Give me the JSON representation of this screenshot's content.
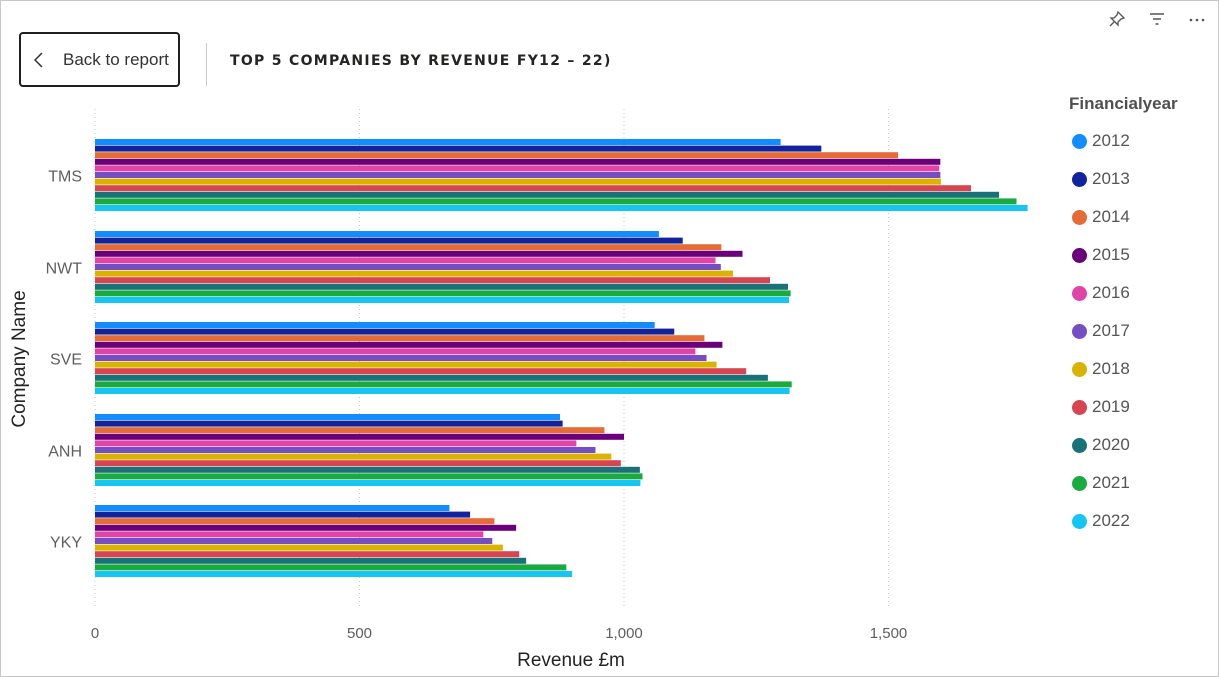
{
  "header": {
    "back_label": "Back to report",
    "title": "TOP 5 COMPANIES BY REVENUE FY12 – 22)"
  },
  "toolbar": {
    "icons": [
      "pin-icon",
      "filter-icon",
      "more-options-icon"
    ]
  },
  "legend": {
    "title": "Financialyear"
  },
  "colors": {
    "2012": "#118DFF",
    "2013": "#12239E",
    "2014": "#E66C37",
    "2015": "#6B007B",
    "2016": "#E044A7",
    "2017": "#744EC2",
    "2018": "#D9B300",
    "2019": "#D64550",
    "2020": "#197278",
    "2021": "#1AAB40",
    "2022": "#15C6F4"
  },
  "chart_data": {
    "type": "bar",
    "orientation": "horizontal",
    "title": "TOP 5 COMPANIES BY REVENUE FY12 – 22)",
    "xlabel": "Revenue £m",
    "ylabel": "Company Name",
    "xlim": [
      0,
      1900
    ],
    "xticks": [
      0,
      500,
      1000,
      1500
    ],
    "xtick_labels": [
      "0",
      "500",
      "1,000",
      "1,500"
    ],
    "grid": "vertical-dotted",
    "legend_position": "right",
    "categories": [
      "TMS",
      "NWT",
      "SVE",
      "ANH",
      "YKY"
    ],
    "series": [
      {
        "name": "2012",
        "values": [
          1296,
          1066,
          1058,
          879,
          670
        ]
      },
      {
        "name": "2013",
        "values": [
          1373,
          1111,
          1095,
          884,
          709
        ]
      },
      {
        "name": "2014",
        "values": [
          1518,
          1184,
          1152,
          963,
          755
        ]
      },
      {
        "name": "2015",
        "values": [
          1598,
          1224,
          1186,
          1000,
          796
        ]
      },
      {
        "name": "2016",
        "values": [
          1596,
          1173,
          1135,
          910,
          734
        ]
      },
      {
        "name": "2017",
        "values": [
          1598,
          1183,
          1156,
          946,
          751
        ]
      },
      {
        "name": "2018",
        "values": [
          1599,
          1206,
          1175,
          976,
          771
        ]
      },
      {
        "name": "2019",
        "values": [
          1656,
          1276,
          1231,
          994,
          802
        ]
      },
      {
        "name": "2020",
        "values": [
          1709,
          1310,
          1272,
          1030,
          815
        ]
      },
      {
        "name": "2021",
        "values": [
          1742,
          1315,
          1317,
          1035,
          891
        ]
      },
      {
        "name": "2022",
        "values": [
          1763,
          1312,
          1313,
          1031,
          902
        ]
      }
    ]
  }
}
